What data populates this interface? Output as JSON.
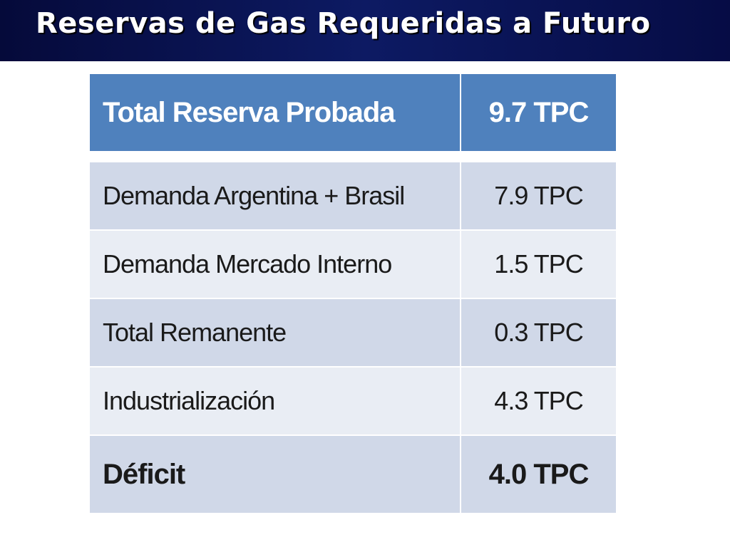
{
  "title": "Reservas de Gas Requeridas a Futuro",
  "table": {
    "header": {
      "label": "Total Reserva Probada",
      "value": "9.7 TPC"
    },
    "rows": [
      {
        "label": "Demanda Argentina + Brasil",
        "value": "7.9 TPC"
      },
      {
        "label": "Demanda Mercado Interno",
        "value": "1.5 TPC"
      },
      {
        "label": "Total Remanente",
        "value": "0.3 TPC"
      },
      {
        "label": "Industrialización",
        "value": "4.3 TPC"
      }
    ],
    "total": {
      "label": "Déficit",
      "value": "4.0 TPC"
    }
  },
  "colors": {
    "title_bar": "#0d1a63",
    "header_fill": "#4f81bd",
    "band_dark": "#d0d8e8",
    "band_light": "#e9edf4"
  }
}
